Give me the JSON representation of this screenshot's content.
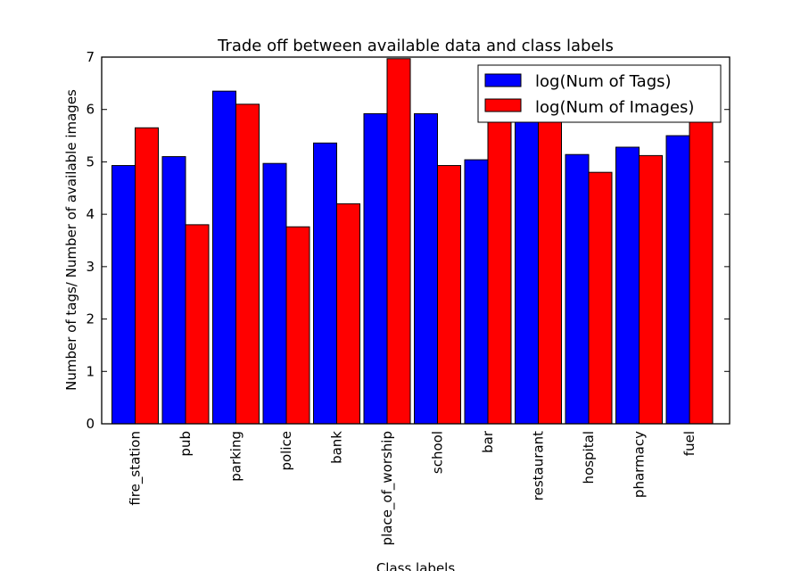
{
  "chart_data": {
    "type": "bar",
    "title": "Trade off between available data and class labels",
    "xlabel": "Class labels",
    "ylabel": "Number of tags/ Number of available images",
    "ylim": [
      0,
      7
    ],
    "yticks": [
      0,
      1,
      2,
      3,
      4,
      5,
      6,
      7
    ],
    "grid": false,
    "legend_position": "top-right",
    "categories": [
      "fire_station",
      "pub",
      "parking",
      "police",
      "bank",
      "place_of_worship",
      "school",
      "bar",
      "restaurant",
      "hospital",
      "pharmacy",
      "fuel"
    ],
    "series": [
      {
        "name": "log(Num of Tags)",
        "color": "#0000ff",
        "values": [
          4.93,
          5.1,
          6.35,
          4.97,
          5.36,
          5.92,
          5.92,
          5.04,
          5.95,
          5.14,
          5.28,
          5.5
        ]
      },
      {
        "name": "log(Num of Images)",
        "color": "#ff0000",
        "values": [
          5.65,
          3.8,
          6.1,
          3.76,
          4.2,
          6.97,
          4.93,
          5.9,
          5.95,
          4.8,
          5.12,
          5.85
        ]
      }
    ]
  }
}
